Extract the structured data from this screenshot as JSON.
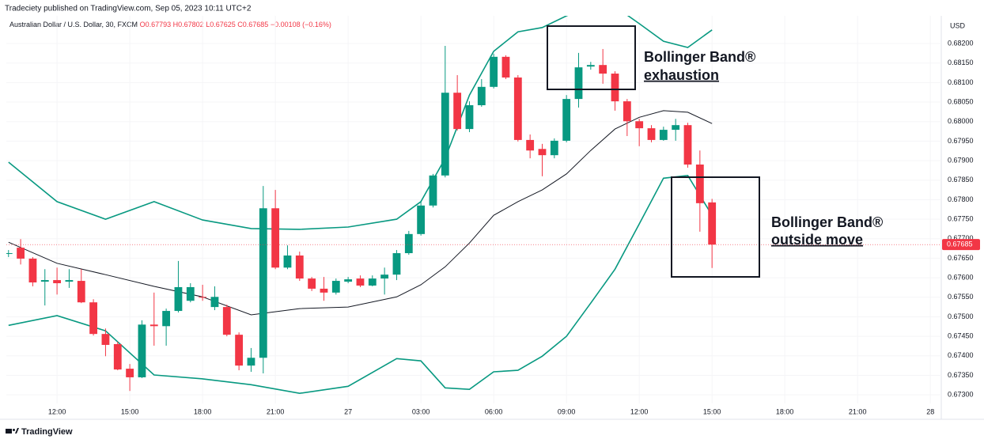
{
  "header": {
    "publisher": "Tradeciety published on TradingView.com, Sep 05, 2023 10:11 UTC+2"
  },
  "footer": {
    "brand": "TradingView"
  },
  "chart_data": {
    "type": "candlestick",
    "symbol": "Australian Dollar / U.S. Dollar, 30, FXCM",
    "legend_values": [
      "O0.67793",
      "H0.67802",
      "L0.67625",
      "C0.67685",
      "−0.00108 (−0.16%)"
    ],
    "currency": "USD",
    "last_price_label": "0.67685",
    "up_color": "#089981",
    "down_color": "#f23645",
    "grid": true,
    "xlim": [
      9.91,
      48.45
    ],
    "xticks": [
      {
        "value": 12,
        "label": "12:00"
      },
      {
        "value": 15,
        "label": "15:00"
      },
      {
        "value": 18,
        "label": "18:00"
      },
      {
        "value": 21,
        "label": "21:00"
      },
      {
        "value": 24,
        "label": "27"
      },
      {
        "value": 27,
        "label": "03:00"
      },
      {
        "value": 30,
        "label": "06:00"
      },
      {
        "value": 33,
        "label": "09:00"
      },
      {
        "value": 36,
        "label": "12:00"
      },
      {
        "value": 39,
        "label": "15:00"
      },
      {
        "value": 42,
        "label": "18:00"
      },
      {
        "value": 45,
        "label": "21:00"
      },
      {
        "value": 48,
        "label": "28"
      }
    ],
    "ylim": [
      0.67278,
      0.68271
    ],
    "yticks": [
      {
        "value": 0.673,
        "label": "0.67300"
      },
      {
        "value": 0.6735,
        "label": "0.67350"
      },
      {
        "value": 0.674,
        "label": "0.67400"
      },
      {
        "value": 0.6745,
        "label": "0.67450"
      },
      {
        "value": 0.675,
        "label": "0.67500"
      },
      {
        "value": 0.6755,
        "label": "0.67550"
      },
      {
        "value": 0.676,
        "label": "0.67600"
      },
      {
        "value": 0.6765,
        "label": "0.67650"
      },
      {
        "value": 0.677,
        "label": "0.67700"
      },
      {
        "value": 0.6775,
        "label": "0.67750"
      },
      {
        "value": 0.678,
        "label": "0.67800"
      },
      {
        "value": 0.6785,
        "label": "0.67850"
      },
      {
        "value": 0.679,
        "label": "0.67900"
      },
      {
        "value": 0.6795,
        "label": "0.67950"
      },
      {
        "value": 0.68,
        "label": "0.68000"
      },
      {
        "value": 0.6805,
        "label": "0.68050"
      },
      {
        "value": 0.681,
        "label": "0.68100"
      },
      {
        "value": 0.6815,
        "label": "0.68150"
      },
      {
        "value": 0.682,
        "label": "0.68200"
      }
    ],
    "candles": {
      "x": [
        10,
        10.5,
        11,
        11.5,
        12,
        12.5,
        13,
        13.5,
        14,
        14.5,
        15,
        15.5,
        16,
        16.5,
        17,
        17.5,
        18,
        18.5,
        19,
        19.5,
        20,
        20.5,
        21,
        21.5,
        22,
        22.5,
        23,
        23.5,
        24,
        24.5,
        25,
        25.5,
        26,
        26.5,
        27,
        27.5,
        28,
        28.5,
        29,
        29.5,
        30,
        30.5,
        31,
        31.5,
        32,
        32.5,
        33,
        33.5,
        34,
        34.5,
        35,
        35.5,
        36,
        36.5,
        37,
        37.5,
        38,
        38.5,
        39
      ],
      "open": [
        0.67661,
        0.67677,
        0.67649,
        0.6759,
        0.67594,
        0.6759,
        0.67592,
        0.67537,
        0.67456,
        0.6743,
        0.67367,
        0.67345,
        0.6748,
        0.67476,
        0.67515,
        0.67541,
        0.67551,
        0.67525,
        0.67525,
        0.67454,
        0.67375,
        0.67395,
        0.67778,
        0.67626,
        0.67657,
        0.67598,
        0.67572,
        0.67562,
        0.6759,
        0.67598,
        0.6758,
        0.67598,
        0.67608,
        0.67663,
        0.67712,
        0.67785,
        0.67862,
        0.68074,
        0.67981,
        0.68042,
        0.68089,
        0.68166,
        0.68113,
        0.67953,
        0.6793,
        0.67914,
        0.67951,
        0.68058,
        0.68141,
        0.68145,
        0.68123,
        0.68052,
        0.68001,
        0.67983,
        0.67953,
        0.67979,
        0.67991,
        0.6789,
        0.67793
      ],
      "high": [
        0.67671,
        0.67699,
        0.67653,
        0.67622,
        0.67626,
        0.67622,
        0.67622,
        0.67545,
        0.6747,
        0.67436,
        0.67379,
        0.67491,
        0.67562,
        0.67521,
        0.67643,
        0.67586,
        0.67582,
        0.67578,
        0.67531,
        0.6746,
        0.6742,
        0.67835,
        0.67825,
        0.67683,
        0.67667,
        0.67602,
        0.67602,
        0.67598,
        0.67602,
        0.67606,
        0.67606,
        0.67626,
        0.67671,
        0.6772,
        0.67795,
        0.67866,
        0.68194,
        0.68119,
        0.68052,
        0.68109,
        0.68174,
        0.6817,
        0.68119,
        0.67967,
        0.67943,
        0.67957,
        0.68068,
        0.68176,
        0.68153,
        0.68186,
        0.68129,
        0.68058,
        0.68007,
        0.67991,
        0.67987,
        0.68007,
        0.67997,
        0.67926,
        0.67802
      ],
      "low": [
        0.67653,
        0.67634,
        0.67578,
        0.67529,
        0.67557,
        0.67574,
        0.67535,
        0.67452,
        0.67399,
        0.67363,
        0.6731,
        0.67343,
        0.67426,
        0.67426,
        0.67511,
        0.67537,
        0.67541,
        0.67517,
        0.6745,
        0.67363,
        0.67359,
        0.67355,
        0.67622,
        0.67622,
        0.67592,
        0.67566,
        0.67541,
        0.67557,
        0.67586,
        0.67576,
        0.67578,
        0.67557,
        0.67594,
        0.67659,
        0.67708,
        0.6778,
        0.67857,
        0.67977,
        0.67973,
        0.68038,
        0.68085,
        0.68109,
        0.67949,
        0.67906,
        0.6786,
        0.67906,
        0.67947,
        0.68036,
        0.68133,
        0.68097,
        0.68028,
        0.67963,
        0.67937,
        0.67947,
        0.67951,
        0.67951,
        0.67882,
        0.67718,
        0.67625
      ],
      "close": [
        0.67663,
        0.67649,
        0.67588,
        0.67594,
        0.67586,
        0.67594,
        0.67537,
        0.67456,
        0.67428,
        0.67365,
        0.67345,
        0.6748,
        0.67476,
        0.67515,
        0.67576,
        0.67576,
        0.67549,
        0.67551,
        0.67454,
        0.67375,
        0.67395,
        0.67778,
        0.67626,
        0.67657,
        0.67598,
        0.67572,
        0.67562,
        0.67592,
        0.67596,
        0.6758,
        0.67598,
        0.67608,
        0.67663,
        0.67712,
        0.67785,
        0.67862,
        0.68074,
        0.67981,
        0.68042,
        0.68089,
        0.68166,
        0.68113,
        0.67953,
        0.67926,
        0.67914,
        0.67951,
        0.68058,
        0.68139,
        0.68145,
        0.68123,
        0.68052,
        0.68001,
        0.67983,
        0.67953,
        0.67979,
        0.67991,
        0.6789,
        0.67791,
        0.67685
      ]
    },
    "series": [
      {
        "color": "#089981",
        "x": [
          10,
          12,
          14,
          16,
          18,
          20,
          22,
          24,
          26,
          27,
          28,
          29,
          30,
          31,
          32,
          33,
          34,
          35,
          36,
          37,
          38,
          39
        ],
        "values": [
          0.67896,
          0.67795,
          0.6775,
          0.67795,
          0.67748,
          0.67726,
          0.67724,
          0.6773,
          0.6775,
          0.67795,
          0.67906,
          0.68068,
          0.6818,
          0.6823,
          0.68241,
          0.68271,
          0.68295,
          0.68295,
          0.68251,
          0.68206,
          0.6819,
          0.68235
        ]
      },
      {
        "color": "#131722",
        "x": [
          10,
          12,
          14,
          16,
          18,
          20,
          22,
          24,
          26,
          27,
          28,
          29,
          30,
          31,
          32,
          33,
          34,
          35,
          36,
          37,
          38,
          39
        ],
        "values": [
          0.67691,
          0.67637,
          0.67608,
          0.67578,
          0.67551,
          0.67505,
          0.67521,
          0.67525,
          0.67551,
          0.67582,
          0.67628,
          0.67689,
          0.6776,
          0.67795,
          0.67825,
          0.67866,
          0.67926,
          0.67981,
          0.68011,
          0.68028,
          0.68024,
          0.67995
        ]
      },
      {
        "color": "#089981",
        "x": [
          10,
          12,
          14,
          16,
          18,
          20,
          22,
          24,
          26,
          27,
          28,
          29,
          30,
          31,
          32,
          33,
          34,
          35,
          36,
          37,
          38,
          39
        ],
        "values": [
          0.67478,
          0.67503,
          0.67464,
          0.67351,
          0.67341,
          0.67326,
          0.67304,
          0.67322,
          0.67393,
          0.67387,
          0.67318,
          0.67314,
          0.67359,
          0.67363,
          0.67399,
          0.6745,
          0.67535,
          0.67622,
          0.67738,
          0.67855,
          0.67862,
          0.6776
        ]
      }
    ],
    "annotations": [
      {
        "title": "Bollinger Band®",
        "subtitle": "exhaustion"
      },
      {
        "title": "Bollinger Band®",
        "subtitle": "outside move"
      }
    ]
  }
}
